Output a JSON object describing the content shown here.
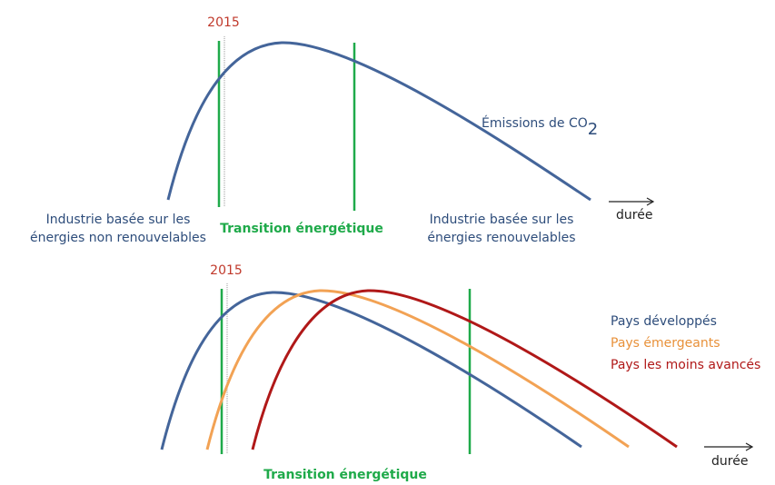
{
  "top": {
    "year": "2015",
    "title": "Émissions de CO",
    "title_subscript": "2",
    "left_label": [
      "Industrie basée sur les",
      "énergies non renouvelables"
    ],
    "transition": "Transition énergétique",
    "right_label": [
      "Industrie basée sur les",
      "énergies renouvelables"
    ],
    "axis": "durée"
  },
  "bottom": {
    "year": "2015",
    "legend": [
      "Pays développés",
      "Pays émergeants",
      "Pays les moins avancés"
    ],
    "transition": "Transition énergétique",
    "axis": "durée"
  }
}
